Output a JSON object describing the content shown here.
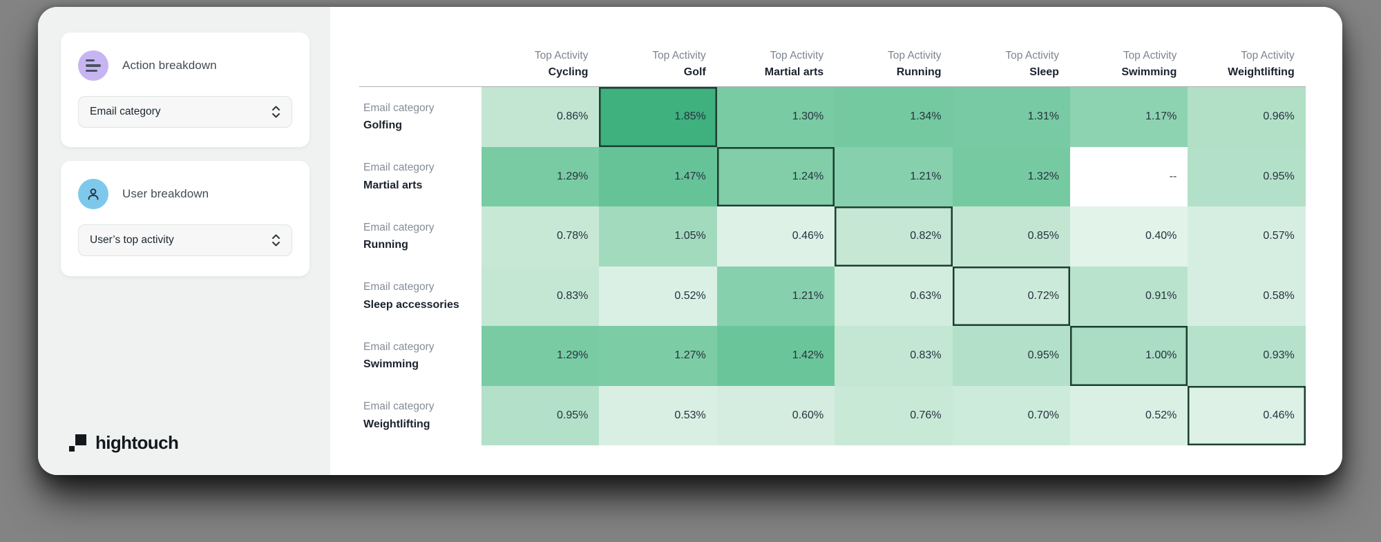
{
  "page": {
    "background": "#838383",
    "card_background": "#ffffff",
    "sidebar_background": "#eff2f0"
  },
  "sidebar": {
    "panels": [
      {
        "title": "Action breakdown",
        "icon": "bars-icon",
        "icon_bg": "#c7b5f2",
        "dropdown_value": "Email category"
      },
      {
        "title": "User breakdown",
        "icon": "person-icon",
        "icon_bg": "#7ec8ec",
        "dropdown_value": "User’s top activity"
      }
    ],
    "logo_text": "hightouch"
  },
  "chart_data": {
    "type": "heatmap",
    "column_header_prefix": "Top Activity",
    "row_header_prefix": "Email category",
    "columns": [
      "Cycling",
      "Golf",
      "Martial arts",
      "Running",
      "Sleep",
      "Swimming",
      "Weightlifting"
    ],
    "rows": [
      "Golfing",
      "Martial arts",
      "Running",
      "Sleep accessories",
      "Swimming",
      "Weightlifting"
    ],
    "values": [
      [
        0.86,
        1.85,
        1.3,
        1.34,
        1.31,
        1.17,
        0.96
      ],
      [
        1.29,
        1.47,
        1.24,
        1.21,
        1.32,
        null,
        0.95
      ],
      [
        0.78,
        1.05,
        0.46,
        0.82,
        0.85,
        0.4,
        0.57
      ],
      [
        0.83,
        0.52,
        1.21,
        0.63,
        0.72,
        0.91,
        0.58
      ],
      [
        1.29,
        1.27,
        1.42,
        0.83,
        0.95,
        1.0,
        0.93
      ],
      [
        0.95,
        0.53,
        0.6,
        0.76,
        0.7,
        0.52,
        0.46
      ]
    ],
    "value_format": "percent_2dp",
    "missing_label": "--",
    "highlighted_cells": [
      [
        0,
        1
      ],
      [
        1,
        2
      ],
      [
        2,
        3
      ],
      [
        3,
        4
      ],
      [
        4,
        5
      ],
      [
        5,
        6
      ]
    ],
    "missing_cells": [
      [
        1,
        5
      ]
    ],
    "color_scale": {
      "anchors": [
        {
          "value": 0.4,
          "color": "#E2F3EA"
        },
        {
          "value": 0.86,
          "color": "#C2E6D2"
        },
        {
          "value": 1.29,
          "color": "#79CBA4"
        },
        {
          "value": 1.85,
          "color": "#3EB17E"
        }
      ],
      "highlight_border": "#1B3F2F"
    }
  }
}
